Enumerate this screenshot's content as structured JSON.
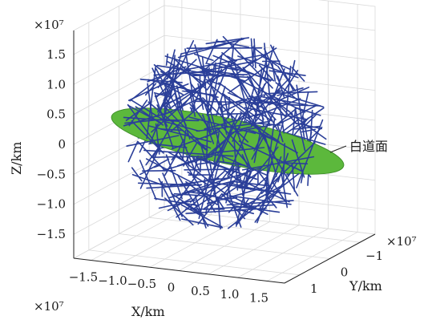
{
  "chart_data": {
    "type": "scatter",
    "subtype": "3d-line-segments",
    "title": "",
    "xlabel": "X/km",
    "ylabel": "Y/km",
    "zlabel": "Z/km",
    "x_exponent": "×10⁷",
    "y_exponent": "×10⁷",
    "z_exponent": "×10⁷",
    "x_ticks": [
      "−1.5",
      "−1.0",
      "−0.5",
      "0",
      "0.5",
      "1.0",
      "1.5"
    ],
    "y_ticks": [
      "1",
      "0",
      "−1"
    ],
    "z_ticks": [
      "1.5",
      "1.0",
      "0.5",
      "0",
      "−0.5",
      "−1.0",
      "−1.5"
    ],
    "xlim": [
      -1.8,
      1.8
    ],
    "ylim": [
      -1.5,
      1.5
    ],
    "zlim": [
      -1.9,
      1.9
    ],
    "grid": true,
    "sphere_radius": 1.55,
    "segment_count": 420,
    "segment_color": "#2b3f99",
    "plane_label": "白道面",
    "plane_color": "#5cb83c",
    "plane_tilt_deg": 12,
    "annotations": [
      {
        "text": "白道面",
        "target": "plane"
      }
    ]
  }
}
